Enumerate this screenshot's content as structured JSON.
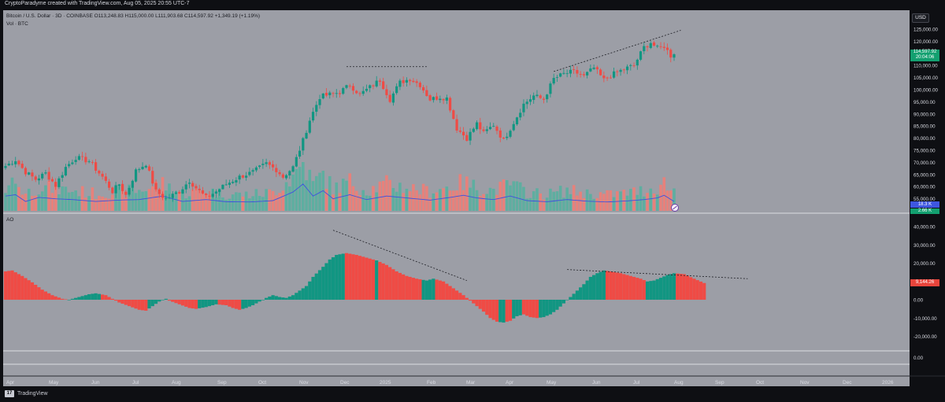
{
  "header": {
    "credit": "CryptoParadyme created with TradingView.com, Aug 05, 2025 20:55 UTC-7",
    "legend": "Bitcoin / U.S. Dollar · 3D · COINBASE  O113,248.83  H115,000.00  L111,903.68  C114,597.92  +1,349.19 (+1.19%)",
    "vol_label": "Vol · BTC",
    "currency_button": "USD"
  },
  "indicator": {
    "ao_label": "AO"
  },
  "tags": {
    "last_price": "114,597.92",
    "countdown": "20:04:06",
    "volume": "18.3 K",
    "volume_ma": "2.66 K",
    "ao_value": "9,144.26"
  },
  "footer": {
    "brand": "TradingView"
  },
  "colors": {
    "up": "#119682",
    "down": "#ef4b45",
    "background": "#9c9ea6",
    "ma": "#3e50e0"
  },
  "price_axis": {
    "ticks": [
      "125,000.00",
      "120,000.00",
      "115,000.00",
      "110,000.00",
      "105,000.00",
      "100,000.00",
      "95,000.00",
      "90,000.00",
      "85,000.00",
      "80,000.00",
      "75,000.00",
      "70,000.00",
      "65,000.00",
      "60,000.00",
      "55,000.00",
      "50,000.00"
    ],
    "values": [
      125000,
      120000,
      115000,
      110000,
      105000,
      100000,
      95000,
      90000,
      85000,
      80000,
      75000,
      70000,
      65000,
      60000,
      55000,
      50000
    ]
  },
  "ao_axis": {
    "ticks": [
      "40,000.00",
      "30,000.00",
      "20,000.00",
      "10,000.00",
      "0.00",
      "-10,000.00",
      "-20,000.00"
    ],
    "values": [
      40000,
      30000,
      20000,
      10000,
      0,
      -10000,
      -20000
    ],
    "lower_pane_tick": "0.00"
  },
  "time_axis": {
    "labels": [
      "Apr",
      "May",
      "Jun",
      "Jul",
      "Aug",
      "Sep",
      "Oct",
      "Nov",
      "Dec",
      "2025",
      "Feb",
      "Mar",
      "Apr",
      "May",
      "Jun",
      "Jul",
      "Aug",
      "Sep",
      "Oct",
      "Nov",
      "Dec",
      "2026"
    ]
  },
  "chart_data": {
    "type": "candlestick",
    "symbol": "Bitcoin / U.S. Dollar · 3D · COINBASE",
    "ohlc_last": {
      "open": 113248.83,
      "high": 115000.0,
      "low": 111903.68,
      "close": 114597.92,
      "change": 1349.19,
      "change_pct": 1.19
    },
    "close_anchors": [
      [
        0,
        68500
      ],
      [
        3,
        71000
      ],
      [
        6,
        66000
      ],
      [
        9,
        63000
      ],
      [
        12,
        65500
      ],
      [
        15,
        60500
      ],
      [
        18,
        68000
      ],
      [
        21,
        72000
      ],
      [
        25,
        70500
      ],
      [
        29,
        64000
      ],
      [
        32,
        58000
      ],
      [
        34,
        61000
      ],
      [
        36,
        56500
      ],
      [
        39,
        66500
      ],
      [
        42,
        69500
      ],
      [
        45,
        58000
      ],
      [
        48,
        55000
      ],
      [
        52,
        58000
      ],
      [
        55,
        62500
      ],
      [
        57,
        59500
      ],
      [
        60,
        55500
      ],
      [
        63,
        58000
      ],
      [
        66,
        61000
      ],
      [
        70,
        64000
      ],
      [
        74,
        66000
      ],
      [
        78,
        69500
      ],
      [
        81,
        67000
      ],
      [
        83,
        64000
      ],
      [
        86,
        68000
      ],
      [
        89,
        79000
      ],
      [
        91,
        87500
      ],
      [
        94,
        97000
      ],
      [
        97,
        98000
      ],
      [
        100,
        99000
      ],
      [
        103,
        102000
      ],
      [
        106,
        98000
      ],
      [
        109,
        101000
      ],
      [
        112,
        104000
      ],
      [
        115,
        96000
      ],
      [
        118,
        103000
      ],
      [
        121,
        104500
      ],
      [
        124,
        102000
      ],
      [
        127,
        96000
      ],
      [
        130,
        97000
      ],
      [
        132,
        96500
      ],
      [
        135,
        84000
      ],
      [
        138,
        80000
      ],
      [
        141,
        86000
      ],
      [
        143,
        82000
      ],
      [
        146,
        85500
      ],
      [
        149,
        79000
      ],
      [
        152,
        86500
      ],
      [
        155,
        94000
      ],
      [
        158,
        97500
      ],
      [
        161,
        96000
      ],
      [
        164,
        104500
      ],
      [
        167,
        106500
      ],
      [
        170,
        107500
      ],
      [
        173,
        105500
      ],
      [
        176,
        109000
      ],
      [
        179,
        104000
      ],
      [
        182,
        106500
      ],
      [
        185,
        108500
      ],
      [
        188,
        110000
      ],
      [
        191,
        117500
      ],
      [
        193,
        119500
      ],
      [
        195,
        117000
      ],
      [
        197,
        118000
      ],
      [
        199,
        114000
      ],
      [
        200,
        114598
      ]
    ],
    "volume_anchors": [
      [
        0,
        0.55
      ],
      [
        3,
        0.6
      ],
      [
        6,
        0.35
      ],
      [
        10,
        0.5
      ],
      [
        15,
        0.45
      ],
      [
        20,
        0.42
      ],
      [
        27,
        0.35
      ],
      [
        34,
        0.4
      ],
      [
        40,
        0.42
      ],
      [
        47,
        0.55
      ],
      [
        53,
        0.35
      ],
      [
        60,
        0.42
      ],
      [
        66,
        0.34
      ],
      [
        73,
        0.33
      ],
      [
        80,
        0.38
      ],
      [
        86,
        0.7
      ],
      [
        89,
        1.0
      ],
      [
        92,
        0.55
      ],
      [
        95,
        0.75
      ],
      [
        98,
        0.45
      ],
      [
        103,
        0.6
      ],
      [
        108,
        0.42
      ],
      [
        114,
        0.55
      ],
      [
        120,
        0.48
      ],
      [
        127,
        0.4
      ],
      [
        133,
        0.5
      ],
      [
        137,
        0.58
      ],
      [
        141,
        0.48
      ],
      [
        146,
        0.42
      ],
      [
        151,
        0.55
      ],
      [
        156,
        0.38
      ],
      [
        162,
        0.34
      ],
      [
        168,
        0.42
      ],
      [
        174,
        0.36
      ],
      [
        180,
        0.33
      ],
      [
        186,
        0.37
      ],
      [
        191,
        0.42
      ],
      [
        195,
        0.48
      ],
      [
        197,
        0.58
      ],
      [
        200,
        0.35
      ]
    ],
    "ao_anchors": [
      [
        0,
        15500
      ],
      [
        2,
        16000
      ],
      [
        5,
        13000
      ],
      [
        8,
        9500
      ],
      [
        11,
        5500
      ],
      [
        14,
        2500
      ],
      [
        17,
        500
      ],
      [
        19,
        0
      ],
      [
        22,
        1500
      ],
      [
        25,
        3000
      ],
      [
        27,
        3500
      ],
      [
        30,
        2500
      ],
      [
        32,
        500
      ],
      [
        34,
        -1500
      ],
      [
        37,
        -3500
      ],
      [
        40,
        -5500
      ],
      [
        42,
        -6000
      ],
      [
        44,
        -3500
      ],
      [
        46,
        -1000
      ],
      [
        48,
        500
      ],
      [
        49,
        -500
      ],
      [
        52,
        -2500
      ],
      [
        55,
        -4500
      ],
      [
        57,
        -5000
      ],
      [
        60,
        -4000
      ],
      [
        63,
        -2500
      ],
      [
        66,
        -3000
      ],
      [
        68,
        -4500
      ],
      [
        70,
        -5500
      ],
      [
        72,
        -4500
      ],
      [
        74,
        -3000
      ],
      [
        76,
        -1000
      ],
      [
        78,
        1000
      ],
      [
        80,
        2500
      ],
      [
        82,
        1500
      ],
      [
        84,
        1000
      ],
      [
        86,
        2500
      ],
      [
        88,
        5000
      ],
      [
        90,
        7500
      ],
      [
        92,
        12500
      ],
      [
        95,
        18000
      ],
      [
        97,
        22000
      ],
      [
        99,
        24500
      ],
      [
        102,
        25500
      ],
      [
        105,
        24500
      ],
      [
        108,
        23000
      ],
      [
        111,
        21500
      ],
      [
        114,
        19000
      ],
      [
        117,
        15500
      ],
      [
        120,
        13000
      ],
      [
        123,
        11500
      ],
      [
        126,
        10500
      ],
      [
        128,
        11500
      ],
      [
        131,
        10000
      ],
      [
        133,
        7500
      ],
      [
        135,
        5000
      ],
      [
        137,
        2500
      ],
      [
        139,
        -500
      ],
      [
        141,
        -3500
      ],
      [
        143,
        -6500
      ],
      [
        145,
        -10000
      ],
      [
        147,
        -12000
      ],
      [
        149,
        -12500
      ],
      [
        151,
        -11500
      ],
      [
        153,
        -9000
      ],
      [
        155,
        -8000
      ],
      [
        157,
        -9500
      ],
      [
        159,
        -10000
      ],
      [
        161,
        -9500
      ],
      [
        163,
        -8000
      ],
      [
        165,
        -5500
      ],
      [
        167,
        -2000
      ],
      [
        169,
        1500
      ],
      [
        171,
        5000
      ],
      [
        173,
        8500
      ],
      [
        175,
        12500
      ],
      [
        177,
        14500
      ],
      [
        179,
        16000
      ],
      [
        181,
        15500
      ],
      [
        184,
        14500
      ],
      [
        187,
        13000
      ],
      [
        190,
        11500
      ],
      [
        192,
        10000
      ],
      [
        194,
        10500
      ],
      [
        196,
        12000
      ],
      [
        198,
        13500
      ],
      [
        200,
        14500
      ],
      [
        203,
        14000
      ],
      [
        206,
        11500
      ],
      [
        209,
        9144
      ]
    ],
    "ao_color_runs": [
      [
        0,
        18,
        "down"
      ],
      [
        19,
        28,
        "up"
      ],
      [
        29,
        42,
        "down"
      ],
      [
        43,
        48,
        "up"
      ],
      [
        49,
        57,
        "down"
      ],
      [
        58,
        63,
        "up"
      ],
      [
        64,
        70,
        "down"
      ],
      [
        71,
        101,
        "up"
      ],
      [
        102,
        110,
        "down"
      ],
      [
        111,
        111,
        "up"
      ],
      [
        112,
        124,
        "down"
      ],
      [
        125,
        128,
        "up"
      ],
      [
        129,
        147,
        "down"
      ],
      [
        148,
        149,
        "up"
      ],
      [
        150,
        151,
        "down"
      ],
      [
        152,
        154,
        "up"
      ],
      [
        155,
        159,
        "down"
      ],
      [
        160,
        179,
        "up"
      ],
      [
        180,
        191,
        "down"
      ],
      [
        192,
        200,
        "up"
      ],
      [
        201,
        209,
        "down"
      ]
    ],
    "trendlines_price": [
      {
        "from": [
          102,
          109500
        ],
        "to": [
          126,
          109500
        ]
      },
      {
        "from": [
          164,
          107500
        ],
        "to": [
          202,
          124500
        ]
      }
    ],
    "trendlines_ao": [
      {
        "from": [
          98,
          38000
        ],
        "to": [
          138,
          10500
        ]
      },
      {
        "from": [
          168,
          16500
        ],
        "to": [
          222,
          11500
        ]
      }
    ]
  }
}
